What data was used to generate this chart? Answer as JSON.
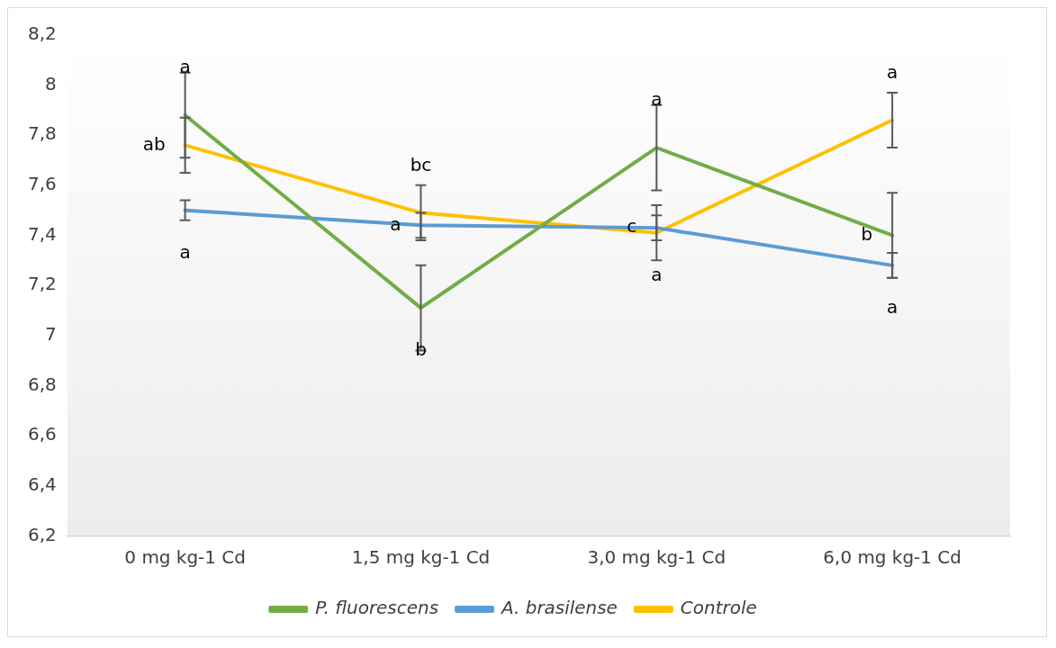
{
  "chart_data": {
    "type": "line",
    "categories": [
      "0 mg kg-1 Cd",
      "1,5 mg kg-1 Cd",
      "3,0 mg kg-1 Cd",
      "6,0 mg kg-1 Cd"
    ],
    "series": [
      {
        "name": "P. fluorescens",
        "color": "#70ad47",
        "values": [
          7.88,
          7.11,
          7.75,
          7.4
        ],
        "errors": [
          0.17,
          0.17,
          0.17,
          0.17
        ]
      },
      {
        "name": "A. brasilense",
        "color": "#5b9bd5",
        "values": [
          7.5,
          7.44,
          7.43,
          7.28
        ],
        "errors": [
          0.04,
          0.05,
          0.05,
          0.05
        ]
      },
      {
        "name": "Controle",
        "color": "#ffc000",
        "values": [
          7.76,
          7.49,
          7.41,
          7.86
        ],
        "errors": [
          0.11,
          0.11,
          0.11,
          0.11
        ]
      }
    ],
    "ylim": [
      6.2,
      8.2
    ],
    "yticks": [
      {
        "value": 6.2,
        "label": "6,2"
      },
      {
        "value": 6.4,
        "label": "6,4"
      },
      {
        "value": 6.6,
        "label": "6,6"
      },
      {
        "value": 6.8,
        "label": "6,8"
      },
      7,
      {
        "value": 7.2,
        "label": "7,2"
      },
      {
        "value": 7.4,
        "label": "7,4"
      },
      {
        "value": 7.6,
        "label": "7,6"
      },
      {
        "value": 7.8,
        "label": "7,8"
      },
      8,
      {
        "value": 8.2,
        "label": "8,2"
      }
    ],
    "annotations": [
      {
        "text": "a",
        "x": "0 mg kg-1 Cd",
        "y": 7.88
      },
      {
        "text": "ab",
        "x": "0 mg kg-1 Cd",
        "y": 7.76
      },
      {
        "text": "a",
        "x": "0 mg kg-1 Cd",
        "y": 7.5
      },
      {
        "text": "b",
        "x": "1,5 mg kg-1 Cd",
        "y": 7.11
      },
      {
        "text": "a",
        "x": "1,5 mg kg-1 Cd",
        "y": 7.44
      },
      {
        "text": "bc",
        "x": "1,5 mg kg-1 Cd",
        "y": 7.49
      },
      {
        "text": "a",
        "x": "3,0 mg kg-1 Cd",
        "y": 7.75
      },
      {
        "text": "c",
        "x": "3,0 mg kg-1 Cd",
        "y": 7.43
      },
      {
        "text": "a",
        "x": "3,0 mg kg-1 Cd",
        "y": 7.41
      },
      {
        "text": "b",
        "x": "6,0 mg kg-1 Cd",
        "y": 7.4
      },
      {
        "text": "a",
        "x": "6,0 mg kg-1 Cd",
        "y": 7.28
      },
      {
        "text": "a",
        "x": "6,0 mg kg-1 Cd",
        "y": 7.86
      }
    ],
    "grid": false,
    "legend": "bottom",
    "marker": "none",
    "line_style": "solid"
  }
}
